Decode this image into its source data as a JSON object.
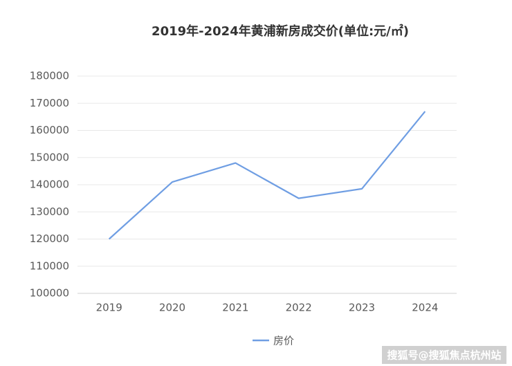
{
  "chart_data": {
    "type": "line",
    "title": "2019年-2024年黄浦新房成交价(单位:元/㎡)",
    "categories": [
      "2019",
      "2020",
      "2021",
      "2022",
      "2023",
      "2024"
    ],
    "series": [
      {
        "name": "房价",
        "color": "#6f9ee3",
        "values": [
          120000,
          141000,
          148000,
          135000,
          138500,
          167000
        ]
      }
    ],
    "ylim": [
      100000,
      180000
    ],
    "yticks": [
      100000,
      110000,
      120000,
      130000,
      140000,
      150000,
      160000,
      170000,
      180000
    ],
    "grid": true,
    "legend": "bottom"
  },
  "watermark": "搜狐号@搜狐焦点杭州站"
}
